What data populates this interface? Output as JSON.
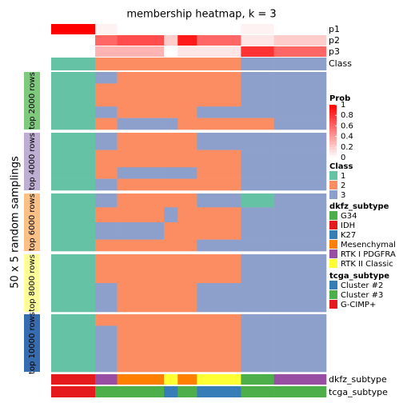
{
  "chart_data": {
    "type": "heatmap",
    "title": "membership heatmap, k = 3",
    "y_label": "50 x 5 random samplings",
    "row_labels": {
      "p1": "p1",
      "p2": "p2",
      "p3": "p3",
      "class": "Class",
      "dkfz": "dkfz_subtype",
      "tcga": "tcga_subtype"
    },
    "segments": [
      {
        "n": 16,
        "class": 1,
        "p1": 1,
        "p2": 0,
        "p3": 0,
        "dkfz": "IDH",
        "tcga": "G-CIMP+"
      },
      {
        "n": 8,
        "class": 2,
        "p1": 0.05,
        "p2": 0.6,
        "p3": 0.3,
        "dkfz": "RTK I PDGFRA",
        "tcga": "Cluster #3"
      },
      {
        "n": 17,
        "class": 2,
        "p1": 0,
        "p2": 0.7,
        "p3": 0.3,
        "dkfz": "Mesenchymal",
        "tcga": "Cluster #3"
      },
      {
        "n": 5,
        "class": 2,
        "p1": 0,
        "p2": 0.2,
        "p3": 0,
        "dkfz": "RTK II Classic",
        "tcga": "Cluster #2"
      },
      {
        "n": 7,
        "class": 2,
        "p1": 0,
        "p2": 0.9,
        "p3": 0.1,
        "dkfz": "Mesenchymal",
        "tcga": "Cluster #3"
      },
      {
        "n": 16,
        "class": 2,
        "p1": 0,
        "p2": 0.6,
        "p3": 0.1,
        "dkfz": "RTK II Classic",
        "tcga": "Cluster #2"
      },
      {
        "n": 12,
        "class": 3,
        "p1": 0.05,
        "p2": 0.1,
        "p3": 0.8,
        "dkfz": "G34",
        "tcga": "Cluster #3"
      },
      {
        "n": 19,
        "class": 3,
        "p1": 0,
        "p2": 0.2,
        "p3": 0.6,
        "dkfz": "RTK I PDGFRA",
        "tcga": "Cluster #3"
      }
    ],
    "blocks": [
      {
        "label": "top 2000 rows",
        "color": "#7fc97f",
        "bands": [
          {
            "rows": 10,
            "cells": [
              1,
              3,
              2,
              2,
              2,
              2,
              3,
              3
            ]
          },
          {
            "rows": 20,
            "cells": [
              1,
              2,
              2,
              2,
              2,
              2,
              3,
              3
            ]
          },
          {
            "rows": 10,
            "cells": [
              1,
              3,
              2,
              2,
              2,
              3,
              3,
              3
            ]
          },
          {
            "rows": 10,
            "cells": [
              1,
              2,
              3,
              3,
              2,
              2,
              2,
              3
            ]
          }
        ]
      },
      {
        "label": "top 4000 rows",
        "color": "#beaed4",
        "bands": [
          {
            "rows": 15,
            "cells": [
              1,
              3,
              2,
              2,
              2,
              3,
              3,
              3
            ]
          },
          {
            "rows": 15,
            "cells": [
              1,
              2,
              2,
              2,
              2,
              2,
              3,
              3
            ]
          },
          {
            "rows": 10,
            "cells": [
              1,
              2,
              3,
              3,
              3,
              2,
              3,
              3
            ]
          },
          {
            "rows": 10,
            "cells": [
              1,
              3,
              2,
              2,
              2,
              2,
              3,
              3
            ]
          }
        ]
      },
      {
        "label": "top 6000 rows",
        "color": "#fdc086",
        "bands": [
          {
            "rows": 12,
            "cells": [
              1,
              3,
              2,
              2,
              2,
              3,
              1,
              3
            ]
          },
          {
            "rows": 13,
            "cells": [
              1,
              2,
              2,
              3,
              2,
              2,
              3,
              3
            ]
          },
          {
            "rows": 15,
            "cells": [
              1,
              3,
              3,
              2,
              2,
              2,
              3,
              3
            ]
          },
          {
            "rows": 10,
            "cells": [
              1,
              2,
              2,
              2,
              2,
              3,
              3,
              3
            ]
          }
        ]
      },
      {
        "label": "top 8000 rows",
        "color": "#ffff99",
        "bands": [
          {
            "rows": 25,
            "cells": [
              1,
              2,
              2,
              2,
              2,
              2,
              3,
              3
            ]
          },
          {
            "rows": 25,
            "cells": [
              1,
              3,
              2,
              2,
              2,
              3,
              3,
              3
            ]
          }
        ]
      },
      {
        "label": "top 10000 rows",
        "color": "#386cb0",
        "bands": [
          {
            "rows": 10,
            "cells": [
              1,
              2,
              2,
              2,
              2,
              2,
              3,
              3
            ]
          },
          {
            "rows": 40,
            "cells": [
              1,
              3,
              2,
              2,
              2,
              2,
              3,
              3
            ]
          }
        ]
      }
    ],
    "prob_legend": {
      "title": "Prob",
      "range": [
        0,
        1
      ],
      "ticks": [
        0,
        0.2,
        0.4,
        0.6,
        0.8,
        1
      ],
      "low_color": "#ffffff",
      "high_color": "#ff0000"
    },
    "class_legend": {
      "title": "Class",
      "classes": [
        1,
        2,
        3
      ],
      "colors": [
        "#66c2a5",
        "#fc8d62",
        "#8da0cb"
      ]
    },
    "dkfz_legend": {
      "title": "dkfz_subtype",
      "items": [
        {
          "name": "G34",
          "color": "#4daf4a"
        },
        {
          "name": "IDH",
          "color": "#e41a1c"
        },
        {
          "name": "K27",
          "color": "#377eb8"
        },
        {
          "name": "Mesenchymal",
          "color": "#ff7f00"
        },
        {
          "name": "RTK I PDGFRA",
          "color": "#984ea3"
        },
        {
          "name": "RTK II Classic",
          "color": "#ffff33"
        }
      ]
    },
    "tcga_legend": {
      "title": "tcga_subtype",
      "items": [
        {
          "name": "Cluster #2",
          "color": "#377eb8"
        },
        {
          "name": "Cluster #3",
          "color": "#4daf4a"
        },
        {
          "name": "G-CIMP+",
          "color": "#e41a1c"
        }
      ]
    }
  }
}
